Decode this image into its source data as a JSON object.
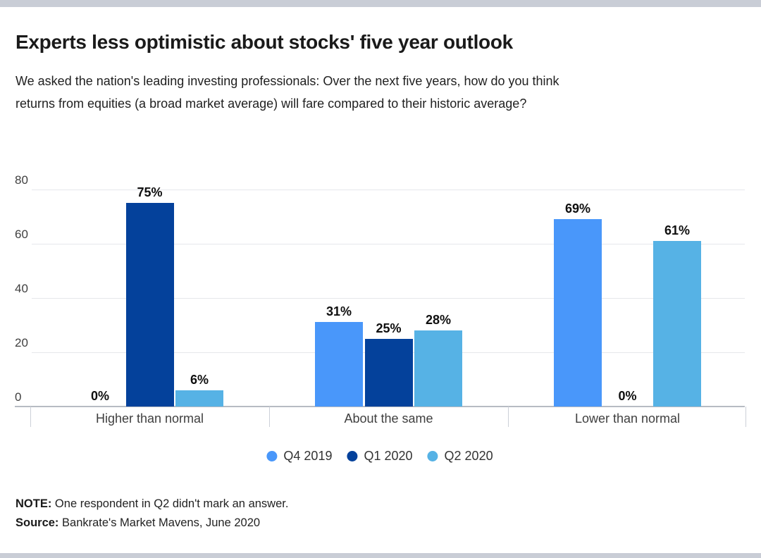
{
  "page": {
    "title": "Experts less optimistic about stocks' five year outlook",
    "subtitle_lines": [
      "We asked the nation's leading investing professionals: Over the next five years, how do you think",
      "returns from equities (a broad market average) will fare compared to their historic average?"
    ],
    "note_label": "NOTE:",
    "note_text": " One respondent in Q2 didn't mark an answer.",
    "source_label": "Source:",
    "source_text": " Bankrate's Market Mavens, June 2020"
  },
  "colors": {
    "accent_bar_top_bottom": "#c9cdd6",
    "gridline": "#e6e7eb",
    "axis_line": "#b7bbc3",
    "category_tick": "#ccd0d8",
    "title_text": "#1a1a1a",
    "body_text": "#1f1f1f"
  },
  "chart_data": {
    "type": "bar",
    "title": "Experts less optimistic about stocks' five year outlook",
    "categories": [
      "Higher than normal",
      "About the same",
      "Lower than normal"
    ],
    "series": [
      {
        "name": "Q4 2019",
        "color": "#4997fa",
        "values": [
          0,
          31,
          69
        ]
      },
      {
        "name": "Q1 2020",
        "color": "#04419b",
        "values": [
          75,
          25,
          0
        ]
      },
      {
        "name": "Q2 2020",
        "color": "#56b2e5",
        "values": [
          6,
          28,
          61
        ]
      }
    ],
    "value_suffix": "%",
    "data_labels": [
      [
        "0%",
        "31%",
        "69%"
      ],
      [
        "75%",
        "25%",
        "0%"
      ],
      [
        "6%",
        "28%",
        "61%"
      ]
    ],
    "xlabel": "",
    "ylabel": "",
    "yticks": [
      0,
      20,
      40,
      60,
      80
    ],
    "ylim": [
      0,
      80
    ],
    "grid": true,
    "legend_position": "bottom"
  }
}
